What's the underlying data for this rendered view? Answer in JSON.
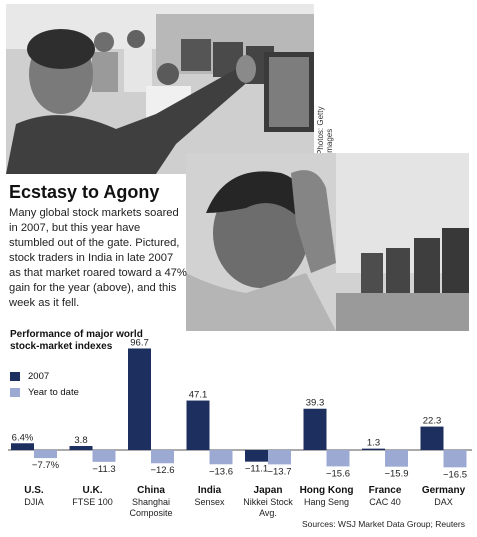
{
  "photo_credit": "Photos: Getty Images",
  "headline": "Ecstasy to Agony",
  "body": "Many global stock markets soared in 2007, but this year have stumbled out of the gate. Pictured, stock traders in India in late 2007 as that market roared toward a 47% gain for the year (above), and this week as it fell.",
  "chart_data": {
    "type": "bar",
    "title": "Performance of major world stock-market indexes",
    "categories": [
      {
        "country": "U.S.",
        "index": "DJIA"
      },
      {
        "country": "U.K.",
        "index": "FTSE 100"
      },
      {
        "country": "China",
        "index": "Shanghai Composite"
      },
      {
        "country": "India",
        "index": "Sensex"
      },
      {
        "country": "Japan",
        "index": "Nikkei Stock Avg."
      },
      {
        "country": "Hong Kong",
        "index": "Hang Seng"
      },
      {
        "country": "France",
        "index": "CAC 40"
      },
      {
        "country": "Germany",
        "index": "DAX"
      }
    ],
    "series": [
      {
        "name": "2007",
        "color": "#1c2f5e",
        "values": [
          6.4,
          3.8,
          96.7,
          47.1,
          -11.1,
          39.3,
          1.3,
          22.3
        ],
        "labels": [
          "6.4%",
          "3.8",
          "96.7",
          "47.1",
          "−11.1",
          "39.3",
          "1.3",
          "22.3"
        ]
      },
      {
        "name": "Year to date",
        "color": "#9ca9d3",
        "values": [
          -7.7,
          -11.3,
          -12.6,
          -13.6,
          -13.7,
          -15.6,
          -15.9,
          -16.5
        ],
        "labels": [
          "−7.7%",
          "−11.3",
          "−12.6",
          "−13.6",
          "−13.7",
          "−15.6",
          "−15.9",
          "−16.5"
        ]
      }
    ],
    "grid": false,
    "legend_position": "top-left"
  },
  "source": "Sources: WSJ Market Data Group; Reuters"
}
